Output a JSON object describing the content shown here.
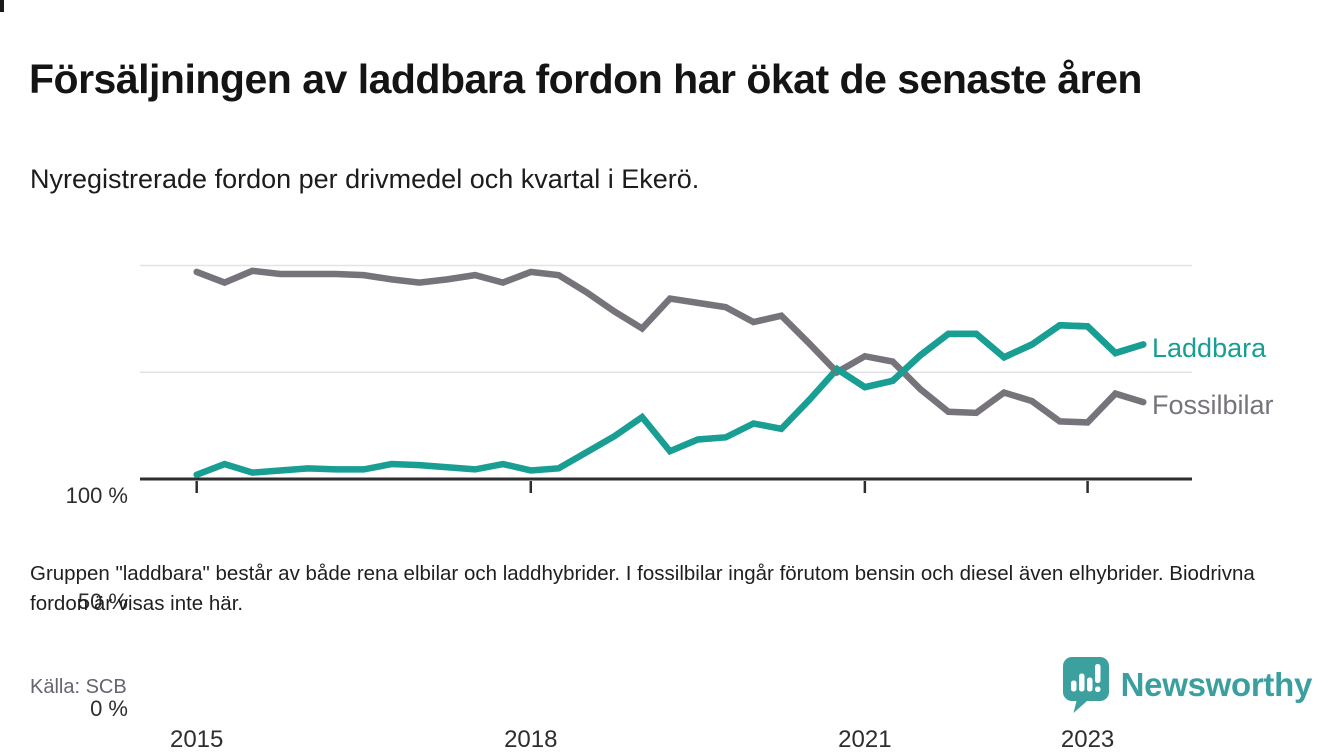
{
  "title": "Försäljningen av laddbara fordon har ökat de senaste åren",
  "subtitle": "Nyregistrerade fordon per drivmedel och kvartal i Ekerö.",
  "note": "Gruppen \"laddbara\" består av både rena elbilar och laddhybrider. I fossilbilar ingår förutom bensin och diesel även elhybrider. Biodrivna fordon är visas inte här.",
  "source": "Källa: SCB",
  "brand": {
    "name": "Newsworthy",
    "icon": "speech-bubble-bar-chart-icon",
    "color": "#3ba09e"
  },
  "chart_data": {
    "type": "line",
    "unit": "%",
    "grid": "horizontal",
    "ylim": [
      0,
      100
    ],
    "legend_position": "right-end-labels",
    "x": [
      "2015 Q1",
      "2015 Q2",
      "2015 Q3",
      "2015 Q4",
      "2016 Q1",
      "2016 Q2",
      "2016 Q3",
      "2016 Q4",
      "2017 Q1",
      "2017 Q2",
      "2017 Q3",
      "2017 Q4",
      "2018 Q1",
      "2018 Q2",
      "2018 Q3",
      "2018 Q4",
      "2019 Q1",
      "2019 Q2",
      "2019 Q3",
      "2019 Q4",
      "2020 Q1",
      "2020 Q2",
      "2020 Q3",
      "2020 Q4",
      "2021 Q1",
      "2021 Q2",
      "2021 Q3",
      "2021 Q4",
      "2022 Q1",
      "2022 Q2",
      "2022 Q3",
      "2022 Q4",
      "2023 Q1",
      "2023 Q2",
      "2023 Q3"
    ],
    "series": [
      {
        "name": "Laddbara",
        "color": "#189e93",
        "values": [
          2,
          7,
          3,
          4,
          5,
          4.5,
          4.5,
          7,
          6.5,
          5.5,
          4.5,
          7,
          4,
          5,
          12.5,
          20,
          29,
          13,
          18.5,
          19.5,
          26,
          23.5,
          37,
          51.5,
          43,
          46,
          58,
          68,
          68,
          57,
          63,
          72,
          71.5,
          59,
          63
        ]
      },
      {
        "name": "Fossilbilar",
        "color": "#76737b",
        "values": [
          97,
          92,
          97.5,
          96,
          96,
          96,
          95.5,
          93.5,
          92,
          93.5,
          95.5,
          92,
          97,
          95.5,
          87.5,
          78.5,
          70.5,
          84.5,
          82.5,
          80.5,
          73.5,
          76.5,
          63.5,
          50,
          57.5,
          55,
          42,
          31.5,
          31,
          40.5,
          36.5,
          27,
          26.5,
          40,
          36
        ]
      }
    ],
    "y_ticks": [
      {
        "label": "0 %",
        "value": 0
      },
      {
        "label": "50 %",
        "value": 50
      },
      {
        "label": "100 %",
        "value": 100
      }
    ],
    "x_ticks": [
      {
        "label": "2015",
        "quarter_index": 0
      },
      {
        "label": "2018",
        "quarter_index": 12
      },
      {
        "label": "2021",
        "quarter_index": 24
      },
      {
        "label": "2023",
        "quarter_index": 32
      }
    ]
  }
}
